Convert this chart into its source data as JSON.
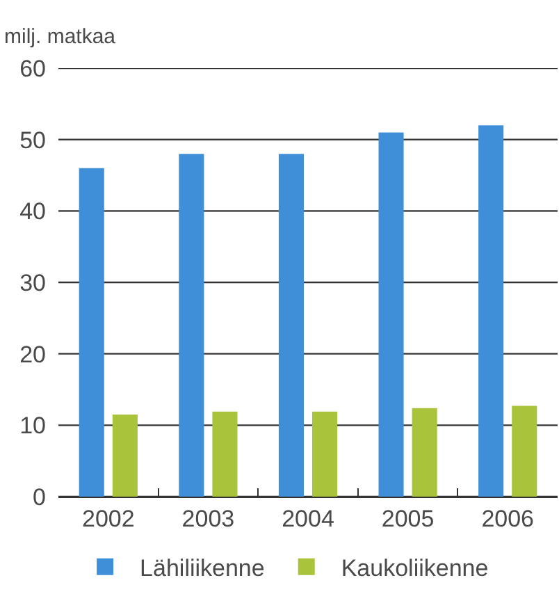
{
  "chart_data": {
    "type": "bar",
    "ylabel": "milj. matkaa",
    "categories": [
      "2002",
      "2003",
      "2004",
      "2005",
      "2006"
    ],
    "series": [
      {
        "name": "Lähiliikenne",
        "color": "#3f8fd8",
        "values": [
          46,
          48,
          48,
          51,
          52
        ]
      },
      {
        "name": "Kaukoliikenne",
        "color": "#a9c33b",
        "values": [
          11.5,
          11.9,
          11.9,
          12.4,
          12.7
        ]
      }
    ],
    "ylim": [
      0,
      60
    ],
    "yticks": [
      0,
      10,
      20,
      30,
      40,
      50,
      60
    ],
    "grid": "y",
    "legend": "bottom"
  }
}
